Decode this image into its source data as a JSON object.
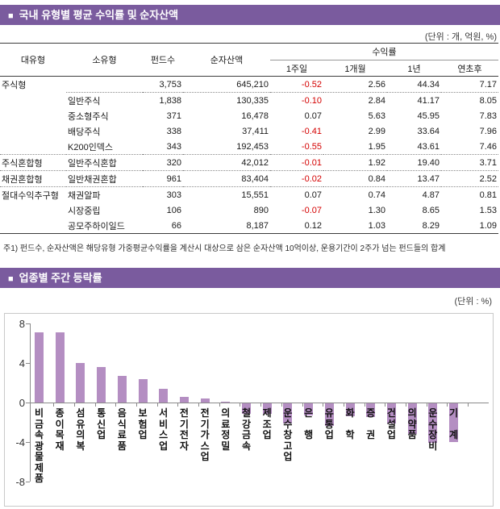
{
  "colors": {
    "header_bar": "#7A5B9E",
    "chart_bar": "#B48EC2",
    "negative_text": "#D40000"
  },
  "section1": {
    "bullet": "■",
    "title": "국내 유형별 평균 수익률 및 순자산액",
    "unit_label": "(단위 : 개, 억원, %)",
    "table": {
      "headers": [
        "대유형",
        "소유형",
        "펀드수",
        "순자산액"
      ],
      "group_header": "수익률",
      "sub_headers": [
        "1주일",
        "1개월",
        "1년",
        "연초후"
      ],
      "rows": [
        {
          "type": "주식형",
          "subtype": "",
          "funds": "3,753",
          "assets": "645,210",
          "w1": "-0.52",
          "m1": "2.56",
          "y1": "44.34",
          "ytd": "7.17",
          "sep": "partial"
        },
        {
          "type": "",
          "subtype": "일반주식",
          "funds": "1,838",
          "assets": "130,335",
          "w1": "-0.10",
          "m1": "2.84",
          "y1": "41.17",
          "ytd": "8.05",
          "sep": "none"
        },
        {
          "type": "",
          "subtype": "중소형주식",
          "funds": "371",
          "assets": "16,478",
          "w1": "0.07",
          "m1": "5.63",
          "y1": "45.95",
          "ytd": "7.83",
          "sep": "none"
        },
        {
          "type": "",
          "subtype": "배당주식",
          "funds": "338",
          "assets": "37,411",
          "w1": "-0.41",
          "m1": "2.99",
          "y1": "33.64",
          "ytd": "7.96",
          "sep": "none"
        },
        {
          "type": "",
          "subtype": "K200인덱스",
          "funds": "343",
          "assets": "192,453",
          "w1": "-0.55",
          "m1": "1.95",
          "y1": "43.61",
          "ytd": "7.46",
          "sep": "dotted"
        },
        {
          "type": "주식혼합형",
          "subtype": "일반주식혼합",
          "funds": "320",
          "assets": "42,012",
          "w1": "-0.01",
          "m1": "1.92",
          "y1": "19.40",
          "ytd": "3.71",
          "sep": "dotted"
        },
        {
          "type": "채권혼합형",
          "subtype": "일반채권혼합",
          "funds": "961",
          "assets": "83,404",
          "w1": "-0.02",
          "m1": "0.84",
          "y1": "13.47",
          "ytd": "2.52",
          "sep": "dotted"
        },
        {
          "type": "절대수익추구형",
          "subtype": "채권알파",
          "funds": "303",
          "assets": "15,551",
          "w1": "0.07",
          "m1": "0.74",
          "y1": "4.87",
          "ytd": "0.81",
          "sep": "none"
        },
        {
          "type": "",
          "subtype": "시장중립",
          "funds": "106",
          "assets": "890",
          "w1": "-0.07",
          "m1": "1.30",
          "y1": "8.65",
          "ytd": "1.53",
          "sep": "none"
        },
        {
          "type": "",
          "subtype": "공모주하이일드",
          "funds": "66",
          "assets": "8,187",
          "w1": "0.12",
          "m1": "1.03",
          "y1": "8.29",
          "ytd": "1.09",
          "sep": "solid"
        }
      ]
    },
    "footnote": "주1) 펀드수, 순자산액은 해당유형 가중평균수익률을 계산시 대상으로 삼은 순자산액 10억이상, 운용기간이 2주가 넘는 펀드들의 합계"
  },
  "section2": {
    "bullet": "■",
    "title": "업종별 주간 등락률",
    "unit_label": "(단위 : %)"
  },
  "chart_data": {
    "type": "bar",
    "title": "업종별 주간 등락률",
    "unit": "%",
    "categories": [
      "비금속광물제품",
      "종이목재",
      "섬유의복",
      "통신업",
      "음식료품",
      "보험업",
      "서비스업",
      "전기전자",
      "전기가스업",
      "의료정밀",
      "철강금속",
      "제조업",
      "운수창고업",
      "은 행",
      "유통업",
      "화 학",
      "증 권",
      "건설업",
      "의약품",
      "운수장비",
      "기 계"
    ],
    "values": [
      7.1,
      7.1,
      4.0,
      3.6,
      2.7,
      2.4,
      1.4,
      0.6,
      0.4,
      0.1,
      -1.1,
      -1.1,
      -2.0,
      -1.2,
      -2.3,
      -1.3,
      -1.4,
      -2.0,
      -3.1,
      -4.0,
      -3.9
    ],
    "ylim": [
      -8,
      8
    ],
    "yticks": [
      8,
      4,
      0,
      -4,
      -8
    ],
    "grid": "off",
    "legend": "none",
    "bar_color": "#B48EC2"
  }
}
